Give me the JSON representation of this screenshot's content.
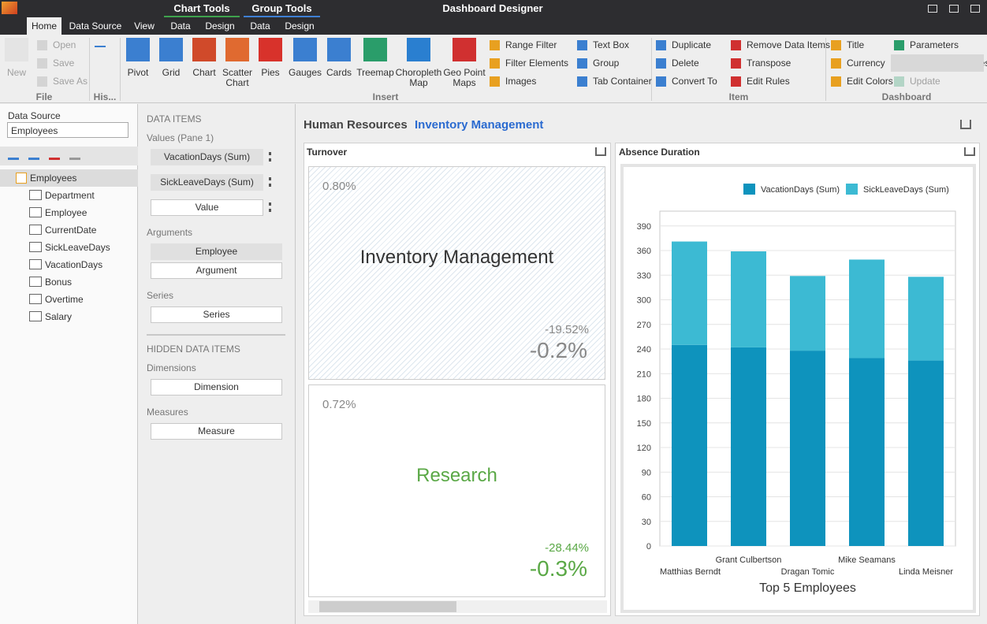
{
  "title_bar": {
    "context_tabs": [
      "Chart Tools",
      "Group Tools"
    ],
    "title": "Dashboard Designer"
  },
  "tabs": [
    "Home",
    "Data Source",
    "View",
    "Data",
    "Design",
    "Data",
    "Design"
  ],
  "ribbon": {
    "file": {
      "big": "New",
      "small": [
        "Open",
        "Save",
        "Save As"
      ],
      "label": "File"
    },
    "history": {
      "label": "His..."
    },
    "insert": {
      "big": [
        "Pivot",
        "Grid",
        "Chart",
        "Scatter Chart",
        "Pies",
        "Gauges",
        "Cards",
        "Treemap",
        "Choropleth Map",
        "Geo Point Maps"
      ],
      "small": [
        "Range Filter",
        "Filter Elements",
        "Images",
        "Text Box",
        "Group",
        "Tab Container"
      ],
      "label": "Insert"
    },
    "item": {
      "small": [
        "Duplicate",
        "Delete",
        "Convert To",
        "Remove Data Items",
        "Transpose",
        "Edit Rules"
      ],
      "label": "Item"
    },
    "dashboard": {
      "small": [
        "Title",
        "Currency",
        "Edit Colors",
        "Parameters",
        "Automatic Updates",
        "Update"
      ],
      "label": "Dashboard"
    }
  },
  "data_source": {
    "label": "Data Source",
    "selected": "Employees",
    "root": "Employees",
    "fields": [
      "Department",
      "Employee",
      "CurrentDate",
      "SickLeaveDays",
      "VacationDays",
      "Bonus",
      "Overtime",
      "Salary"
    ]
  },
  "data_items": {
    "header": "DATA ITEMS",
    "values_label": "Values (Pane 1)",
    "values": [
      "VacationDays (Sum)",
      "SickLeaveDays (Sum)",
      "Value"
    ],
    "arguments_label": "Arguments",
    "arguments": [
      "Employee",
      "Argument"
    ],
    "series_label": "Series",
    "series": [
      "Series"
    ],
    "hidden_header": "HIDDEN DATA ITEMS",
    "dimensions_label": "Dimensions",
    "dimensions": [
      "Dimension"
    ],
    "measures_label": "Measures",
    "measures": [
      "Measure"
    ]
  },
  "dashboard": {
    "title": "Human Resources",
    "title_value": "Inventory Management",
    "cards_title": "Turnover",
    "cards": [
      {
        "title": "Inventory Management",
        "top": "0.80%",
        "delta": "-19.52%",
        "value": "-0.2%"
      },
      {
        "title": "Research",
        "top": "0.72%",
        "delta": "-28.44%",
        "value": "-0.3%"
      }
    ]
  },
  "chart_data": {
    "type": "bar",
    "stacked": true,
    "title": "Absence Duration",
    "x_label": "Top 5 Employees",
    "categories": [
      "Matthias Berndt",
      "Grant Culbertson",
      "Dragan Tomic",
      "Mike Seamans",
      "Linda Meisner"
    ],
    "series": [
      {
        "name": "VacationDays (Sum)",
        "color": "#0e93bd",
        "values": [
          245,
          242,
          238,
          229,
          226
        ]
      },
      {
        "name": "SickLeaveDays (Sum)",
        "color": "#3cbad3",
        "values": [
          126,
          117,
          91,
          120,
          102
        ]
      }
    ],
    "ylim": [
      0,
      408
    ],
    "yticks": [
      0,
      30,
      60,
      90,
      120,
      150,
      180,
      210,
      240,
      270,
      300,
      330,
      360,
      390
    ],
    "grid": true
  }
}
